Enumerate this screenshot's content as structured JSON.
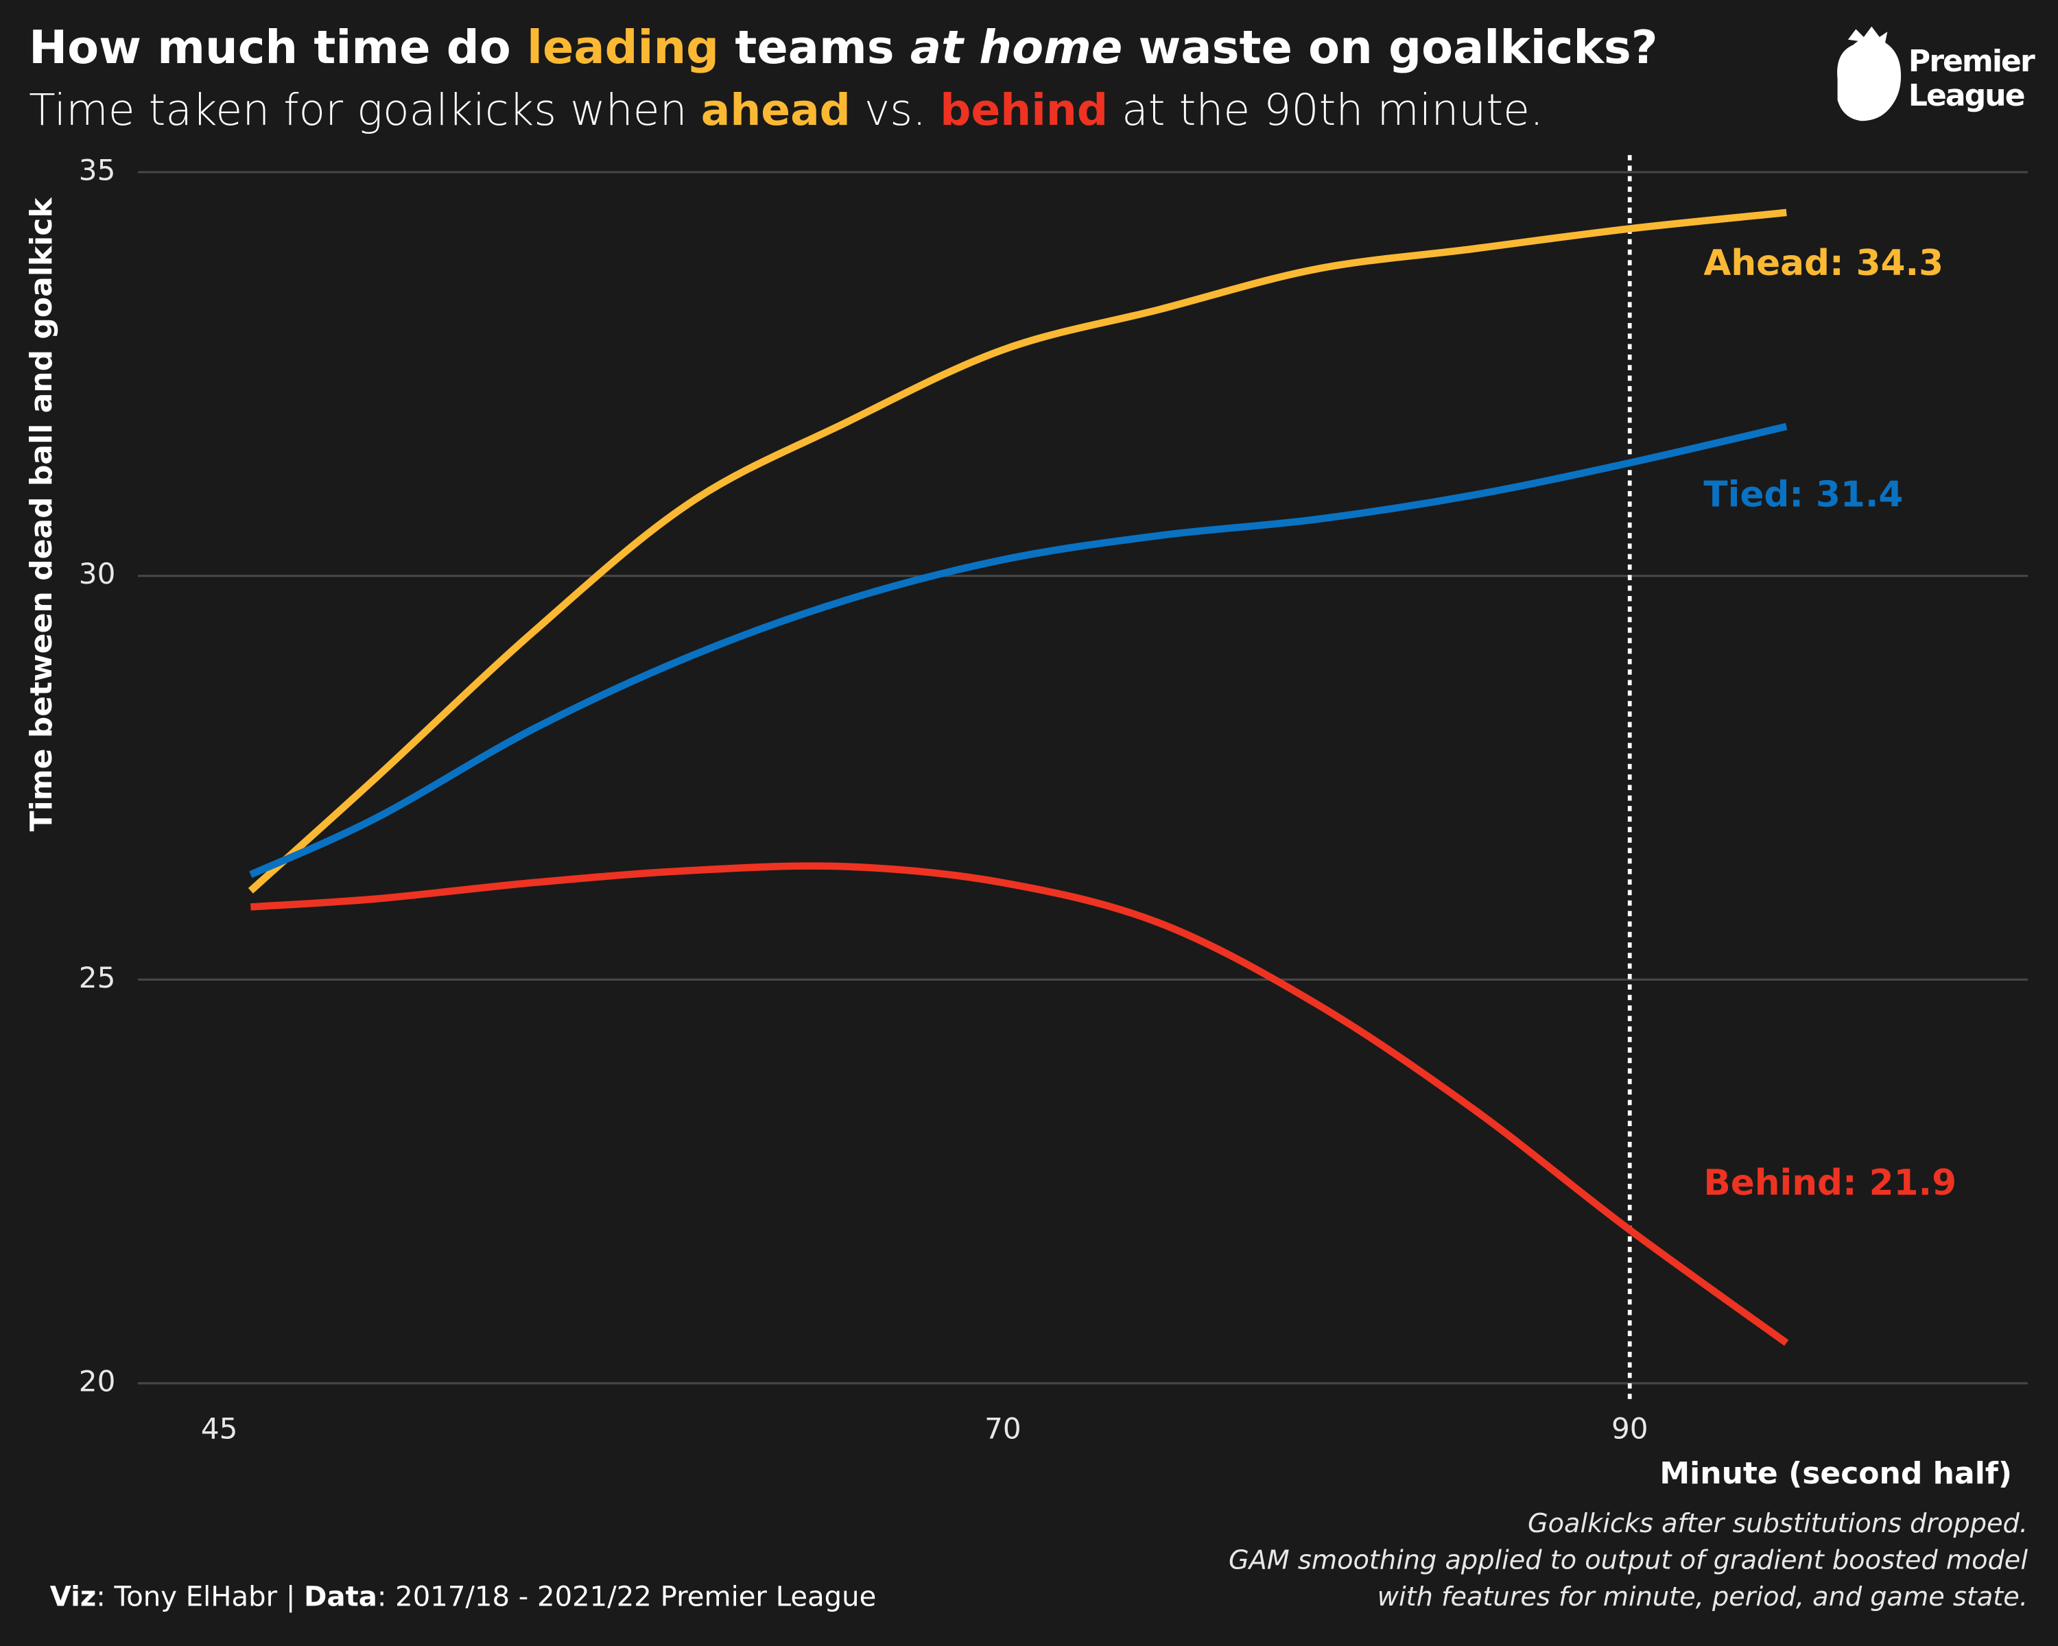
{
  "chart_data": {
    "type": "line",
    "title": [
      {
        "text": "How much time do "
      },
      {
        "text": "leading",
        "color": "#fbb933"
      },
      {
        "text": " teams "
      },
      {
        "text": "at home",
        "italic": true
      },
      {
        "text": " waste on goalkicks?"
      }
    ],
    "subtitle": [
      {
        "text": "Time taken for goalkicks when "
      },
      {
        "text": "ahead",
        "color": "#fbb933",
        "bold": true
      },
      {
        "text": " vs. "
      },
      {
        "text": "behind",
        "color": "#ee3322",
        "bold": true
      },
      {
        "text": " at the 90th minute."
      }
    ],
    "x_label": "Minute (second half)",
    "y_label": "Time between dead ball and goalkick",
    "x": [
      46,
      50,
      55,
      60,
      65,
      70,
      75,
      80,
      85,
      90,
      95
    ],
    "series": [
      {
        "label": "Ahead: 34.3",
        "color": "#fbb933",
        "values": [
          26.1,
          27.5,
          29.3,
          30.9,
          31.9,
          32.8,
          33.3,
          33.8,
          34.05,
          34.3,
          34.5
        ]
      },
      {
        "label": "Tied: 31.4",
        "color": "#0a72c2",
        "values": [
          26.3,
          27.0,
          28.1,
          29.0,
          29.7,
          30.2,
          30.5,
          30.7,
          31.0,
          31.4,
          31.85
        ]
      },
      {
        "label": "Behind: 21.9",
        "color": "#ee3322",
        "values": [
          25.9,
          26.0,
          26.2,
          26.35,
          26.4,
          26.2,
          25.7,
          24.7,
          23.4,
          21.9,
          20.5
        ]
      }
    ],
    "xlim": [
      42.4,
      102.7
    ],
    "xticks": [
      45,
      70,
      90
    ],
    "ylim": [
      20,
      35
    ],
    "yticks": [
      20,
      25,
      30,
      35
    ],
    "grid": true,
    "vline": 90,
    "caption": [
      {
        "text": "Viz",
        "bold": true
      },
      {
        "text": ": Tony ElHabr | "
      },
      {
        "text": "Data",
        "bold": true
      },
      {
        "text": ": 2017/18 - 2021/22 Premier League"
      }
    ],
    "notes": [
      "Goalkicks after substitutions dropped.",
      "GAM smoothing applied to output of gradient boosted model",
      "with features for minute, period, and game state."
    ],
    "logo": [
      "Premier",
      "League"
    ]
  }
}
